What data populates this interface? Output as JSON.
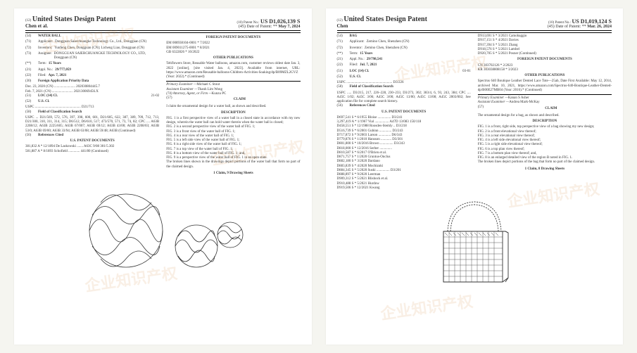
{
  "watermark_text": "企业知识产权",
  "left": {
    "header": {
      "type_line": "(12)",
      "country_title": "United States Design Patent",
      "inventor_line": "Chen et al.",
      "patent_no_label": "(10) Patent No.:",
      "patent_no": "US D1,026,139 S",
      "date_label": "(45) Date of Patent:",
      "date": "May 7, 2024",
      "date_star": "**"
    },
    "left_col": {
      "title_code": "(54)",
      "title": "WATER BALL",
      "applicant_code": "(71)",
      "applicant_label": "Applicant:",
      "applicant": "Dongguan Saierchuangke Technology Co., Ltd., Dongguan (CN)",
      "inventors_code": "(72)",
      "inventors_label": "Inventors:",
      "inventors": "Yunfeng Chen, Dongguan (CN); Licheng Liao, Dongguan (CN)",
      "assignee_code": "(73)",
      "assignee_label": "Assignee:",
      "assignee": "DONGGUAN SAIERCHUANGKE TECHNOLOGY CO., LTD, Dongguan (CN)",
      "term_code": "(**)",
      "term_label": "Term:",
      "term": "15 Years",
      "appl_code": "(21)",
      "appl_label": "Appl. No.:",
      "appl": "29/777,059",
      "filed_code": "(22)",
      "filed_label": "Filed:",
      "filed": "Apr. 7, 2021",
      "priority_code": "(30)",
      "priority_label": "Foreign Application Priority Data",
      "priority_rows": [
        "Dec. 23, 2020   (CN) ........................ 202030804445.7",
        "Feb. 7, 2021    (CN) ........................ 202130069456.X"
      ],
      "locarno_code": "(51)",
      "locarno_label": "LOC (14) Cl.",
      "locarno": "21-02",
      "uscl_code": "(52)",
      "uscl_label": "U.S. Cl.",
      "uscl": "USPC .................................................... D21/713",
      "fos_code": "(58)",
      "fos_label": "Field of Classification Search",
      "fos_body": "USPC ... D21/569, 572, 576, 397, 398, 600, 601, D21/605, 622, 387, 389, 709, 712, 713, D21/300, 310, 311, 314, 315; D6/512, D6/610, 517; 473/570, 571, 73, 74, 82; CPC .... A63B 2208/12; A63B 2225/605; A63B 67/007; A63B 69/12; A63B 43/00; A63B 2208/03; A63B 53/0; A63B 69/00; A63B 33/94; A63B 63/08; A63B 59/48; A63B (Continued)",
      "refs_code": "(56)",
      "refs_label": "References Cited",
      "refs_head": "U.S. PATENT DOCUMENTS",
      "refs_rows": [
        "381,832 A  *  12/1894  De Laskowski ....... A63C 9/08 301/5.302",
        "581,887 A  *   8/1893  Schofield ............. 441/80 (Continued)"
      ]
    },
    "right_col": {
      "fpd_head": "FOREIGN PATENT DOCUMENTS",
      "fpd_rows": [
        "EM    008938104-0001  *  7/2022",
        "EM    009011275-0001  *  8/2021",
        "GB         6322826    *  10/2022"
      ],
      "other_head": "OTHER PUBLICATIONS",
      "other_body": "Tehflowers Store, Reusable Water balloons, amazon.com, customer reviews oldest date Jan. 3, 2022 [online], [site visited Jan. 4, 2023]. Available from internet, URL: https://www.amazon.com/Reusable-balloons-Children-Activities-Soaking/dp/B09MZL2GVZ (Year: 2022).* (Continued)",
      "examiner_label": "Primary Examiner —",
      "examiner": "Michael C Stout",
      "asst_label": "Assistant Examiner —",
      "asst": "Thanh Lim Wong",
      "attorney_label": "(74) Attorney, Agent, or Firm —",
      "attorney": "Kunzu PC",
      "claim_code": "(57)",
      "claim_head": "CLAIM",
      "claim_body": "I claim the ornamental design for a water ball, as shown and described.",
      "desc_head": "DESCRIPTION",
      "desc_body": "FIG. 1 is a first perspective view of a water ball in a closed state in accordance with my new design, wherein the water ball can hold water therein when the water ball is closed;\nFIG. 2 is a second perspective view of the water ball of FIG. 1;\nFIG. 3 is a front view of the water ball of FIG. 1;\nFIG. 4 is a rear view of the water ball of FIG. 1;\nFIG. 5 is a left side view of the water ball of FIG. 1;\nFIG. 6 is a right side view of the water ball of FIG. 1;\nFIG. 7 is a top view of the water ball of FIG. 1;\nFIG. 8 is a bottom view of the water ball of FIG. 1; and,\nFIG. 9 is a perspective view of the water ball of FIG. 1 in an open state.\nThe broken lines shown in the drawings depict portions of the water ball that form no part of the claimed design.",
      "sheets": "1 Claim, 9 Drawing Sheets"
    },
    "figure_svg": true
  },
  "right": {
    "header": {
      "type_line": "(12)",
      "country_title": "United States Design Patent",
      "inventor_line": "Chen",
      "patent_no_label": "(10) Patent No.:",
      "patent_no": "US D1,019,124 S",
      "date_label": "(45) Date of Patent:",
      "date": "Mar. 26, 2024",
      "date_star": "**"
    },
    "left_col": {
      "title_code": "(54)",
      "title": "BAG",
      "applicant_code": "(71)",
      "applicant_label": "Applicant:",
      "applicant": "Zemino Chen, Shenzhen (CN)",
      "inventors_code": "(72)",
      "inventors_label": "Inventor:",
      "inventors": "Zemino Chen, Shenzhen (CN)",
      "term_code": "(**)",
      "term_label": "Term:",
      "term": "15 Years",
      "appl_code": "(21)",
      "appl_label": "Appl. No.:",
      "appl": "29/798,541",
      "filed_code": "(22)",
      "filed_label": "Filed:",
      "filed": "Jul. 7, 2021",
      "locarno_code": "(51)",
      "locarno_label": "LOC (14) Cl.",
      "locarno": "03-01",
      "uscl_code": "(52)",
      "uscl_label": "U.S. Cl.",
      "uscl": "USPC .................................................... D3/226",
      "fos_code": "(58)",
      "fos_label": "Field of Classification Search",
      "fos_body": "USPC ..... D3/215, 217, 226–228, 230–233, D3/273, 302; 383/4, 6, 93, 243, 384; CPC .... A45C 1/02; A45C 3/06; A45C 3/00; A45C 13/00; A45C 13/08; A45C 2003/002; See application file for complete search history.",
      "refs_code": "(56)",
      "refs_label": "References Cited",
      "refs_head": "U.S. PATENT DOCUMENTS",
      "refs_rows": [
        "D697,541 S  *   6/1955  Bloise ............... D3/241",
        "3,297,419 A *   1/1967  Vial ................ A47D 13/083 150/118",
        "D458,551 S  *  12/1988  Roosdes-Stemly .. D3/218",
        "D516,739 S  *   6/2001  Gubinn .............. D3/243",
        "D717,872 S  *   9/2003  Larson .............. D6/343",
        "D779,876 S  *   1/2010  Hansson ............ D3/301",
        "D801,800 S  *  10/2016  Brown ............... D3/243",
        "D818,000 S  *  12/2016  Serber ..............",
        "D810,587 S  *   6/2017  O'Brien et al.",
        "D871,757 S  *   1/2020  Gruntus-Onclus",
        "D882,180 S  *   3/2020  Dardano",
        "D883,839 S  *   4/2020  Mochizuki",
        "D884,345 S  *   5/2020  Suski ............... D3/201",
        "D888,897 S  *   9/2020  Leerman",
        "D909,312 S  *   5/2021  Blishock et al.",
        "D910,488 S  *   5/2021  Hurdow",
        "D919,506 S  *  12/2021  Kwang"
      ]
    },
    "right_col": {
      "more_refs": [
        "D913,691 S  *   3/2021  Camobaggio",
        "D917,151 S  *   4/2021  Davies",
        "D917,394 S  *   5/2021  Zhang",
        "D918,576 S  *   5/2021  Lambel",
        "D920,705 S  *   5/2021  Posner (Continued)"
      ],
      "fpd_head": "FOREIGN PATENT DOCUMENTS",
      "fpd_rows": [
        "CN    303702126    *  2/2023",
        "KR    303038808158 *  3/2023"
      ],
      "other_head": "OTHER PUBLICATIONS",
      "other_body": "Spectrus 640 Boutique Leather Dented Lace Tote—25ab, Date First Available: May 12, 2014, archived Mar. 10, 2021, https://www.amazon.com/Spectrus-640-Boutique-Leather-Dented-dp/B00E27MB04 (Year: 2016).* (Continued)",
      "examiner_label": "Primary Examiner —",
      "examiner": "Kanan S Asher",
      "asst_label": "Assistant Examiner —",
      "asst": "Andrea Mark-McKay",
      "claim_code": "(57)",
      "claim_head": "CLAIM",
      "claim_body": "The ornamental design for a bag, as shown and described.",
      "desc_head": "DESCRIPTION",
      "desc_body": "FIG. 1 is a front, right side, top perspective view of a bag showing my new design;\nFIG. 2 is a front elevational view thereof;\nFIG. 3 is a rear elevational view thereof;\nFIG. 4 is a left side elevational view thereof;\nFIG. 5 is a right side elevational view thereof;\nFIG. 6 is a top plan view thereof;\nFIG. 7 is a bottom plan view thereof; and,\nFIG. 8 is an enlarged detailed view of the region B noted in FIG. 1.\nThe broken lines depict portions of the bag that form no part of the claimed design.",
      "sheets": "1 Claim, 8 Drawing Sheets"
    }
  }
}
